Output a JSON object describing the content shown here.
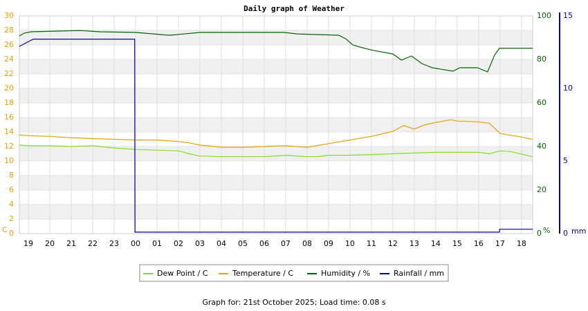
{
  "chart_data": {
    "type": "line",
    "title": "Daily graph of Weather",
    "footer": "Graph for: 21st October 2025; Load time: 0.08 s",
    "ylabel": "C",
    "y2label": "%",
    "y3label": "mm",
    "xlim": [
      -0.42,
      23.52
    ],
    "xticks": [
      {
        "value": 0,
        "label": "19"
      },
      {
        "value": 1,
        "label": "20"
      },
      {
        "value": 2,
        "label": "21"
      },
      {
        "value": 3,
        "label": "22"
      },
      {
        "value": 4,
        "label": "23"
      },
      {
        "value": 5,
        "label": "00"
      },
      {
        "value": 6,
        "label": "01"
      },
      {
        "value": 7,
        "label": "02"
      },
      {
        "value": 8,
        "label": "03"
      },
      {
        "value": 9,
        "label": "04"
      },
      {
        "value": 10,
        "label": "05"
      },
      {
        "value": 11,
        "label": "06"
      },
      {
        "value": 12,
        "label": "07"
      },
      {
        "value": 13,
        "label": "08"
      },
      {
        "value": 14,
        "label": "09"
      },
      {
        "value": 15,
        "label": "10"
      },
      {
        "value": 16,
        "label": "11"
      },
      {
        "value": 17,
        "label": "12"
      },
      {
        "value": 18,
        "label": "13"
      },
      {
        "value": 19,
        "label": "14"
      },
      {
        "value": 20,
        "label": "15"
      },
      {
        "value": 21,
        "label": "16"
      },
      {
        "value": 22,
        "label": "17"
      },
      {
        "value": 23,
        "label": "18"
      }
    ],
    "ylim": [
      0,
      30
    ],
    "yticks": [
      0,
      2,
      4,
      6,
      8,
      10,
      12,
      14,
      16,
      18,
      20,
      22,
      24,
      26,
      28,
      30
    ],
    "ycolor": "#e8a000",
    "y2lim": [
      0,
      100
    ],
    "y2ticks": [
      0,
      20,
      40,
      60,
      80,
      100
    ],
    "y2color": "#006400",
    "y3lim": [
      0,
      15
    ],
    "y3ticks": [
      0,
      5,
      10,
      15
    ],
    "y3color": "#0000a0",
    "grid": true,
    "series": [
      {
        "name": "Dew Point / C",
        "color": "#7fe01a",
        "axis": "y",
        "x": [
          -0.42,
          0,
          1,
          2,
          3,
          4,
          5,
          6,
          7,
          7.5,
          8,
          9,
          10,
          11,
          12,
          13,
          13.5,
          14,
          15,
          16,
          17,
          18,
          19,
          20,
          21,
          21.5,
          22,
          22.5,
          23.5
        ],
        "values": [
          12.2,
          12.1,
          12.1,
          12.0,
          12.1,
          11.8,
          11.6,
          11.5,
          11.4,
          11.0,
          10.7,
          10.6,
          10.6,
          10.6,
          10.8,
          10.6,
          10.6,
          10.8,
          10.8,
          10.9,
          11.0,
          11.1,
          11.2,
          11.2,
          11.2,
          11.0,
          11.4,
          11.3,
          10.6
        ]
      },
      {
        "name": "Temperature / C",
        "color": "#e8a000",
        "axis": "y",
        "x": [
          -0.42,
          0,
          1,
          2,
          3,
          4,
          5,
          6,
          7,
          7.5,
          8,
          9,
          10,
          11,
          12,
          13,
          14,
          15,
          16,
          17,
          17.5,
          18,
          18.5,
          19,
          19.7,
          20,
          21,
          21.5,
          22,
          23,
          23.5
        ],
        "values": [
          13.6,
          13.5,
          13.4,
          13.2,
          13.1,
          13.0,
          12.9,
          12.9,
          12.7,
          12.5,
          12.2,
          11.9,
          11.9,
          12.0,
          12.1,
          11.9,
          12.4,
          12.9,
          13.4,
          14.1,
          14.9,
          14.4,
          15.0,
          15.3,
          15.7,
          15.5,
          15.4,
          15.2,
          13.8,
          13.3,
          13.0
        ]
      },
      {
        "name": "Humidity / %",
        "color": "#006400",
        "axis": "y2",
        "x": [
          -0.42,
          -0.19,
          0.13,
          2.39,
          3.35,
          4.97,
          6.58,
          8.03,
          11.9,
          12.55,
          14.48,
          14.8,
          15.13,
          15.45,
          16.1,
          17,
          17.4,
          17.87,
          18.35,
          18.84,
          19.8,
          20.13,
          20.94,
          21.42,
          21.74,
          21.97,
          23.52
        ],
        "values": [
          90.8,
          92.1,
          92.7,
          93.3,
          92.7,
          92.4,
          91.1,
          92.4,
          92.4,
          91.7,
          91.1,
          89.5,
          86.7,
          85.7,
          84.1,
          82.5,
          79.7,
          81.6,
          78.1,
          76.2,
          74.6,
          76.2,
          76.2,
          74.3,
          81.9,
          85.1,
          85.1
        ]
      },
      {
        "name": "Rainfall / mm",
        "color": "#0000a0",
        "axis": "y3",
        "x": [
          -0.42,
          -0.16,
          0.23,
          4.96,
          4.97,
          21.97,
          21.98,
          23.52
        ],
        "values": [
          12.9,
          13.1,
          13.4,
          13.4,
          0.1,
          0.1,
          0.3,
          0.3
        ]
      }
    ]
  }
}
